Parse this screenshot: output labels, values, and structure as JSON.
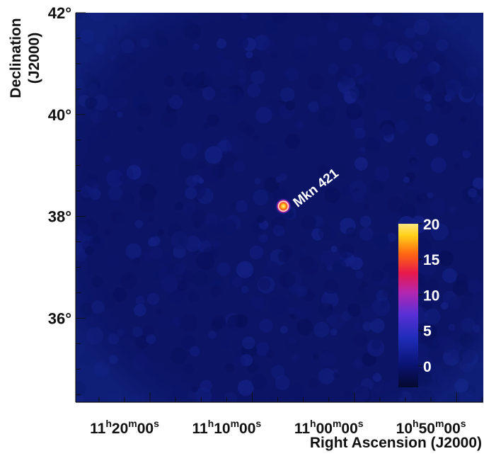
{
  "chart_data": {
    "type": "heatmap",
    "title": "",
    "xlabel": "Right Ascension (J2000)",
    "ylabel_line1": "Declination",
    "ylabel_line2": "(J2000)",
    "x_axis_reversed": true,
    "xlim_ra_hours": [
      11.413,
      10.748
    ],
    "ylim_dec_deg": [
      34.35,
      42.0
    ],
    "x_ticks": [
      {
        "ra_hours": 11.3333,
        "h": "11",
        "m": "20",
        "s": "00"
      },
      {
        "ra_hours": 11.1667,
        "h": "11",
        "m": "10",
        "s": "00"
      },
      {
        "ra_hours": 11.0,
        "h": "11",
        "m": "00",
        "s": "00"
      },
      {
        "ra_hours": 10.8333,
        "h": "10",
        "m": "50",
        "s": "00"
      }
    ],
    "x_unit_symbols": {
      "h": "h",
      "m": "m",
      "s": "s"
    },
    "y_ticks": [
      {
        "dec": 42,
        "label": "42°"
      },
      {
        "dec": 40,
        "label": "40°"
      },
      {
        "dec": 38,
        "label": "38°"
      },
      {
        "dec": 36,
        "label": "36°"
      }
    ],
    "source": {
      "name": "Mkn 421",
      "ra_hours": 11.0742,
      "dec": 38.2,
      "peak_value": 20
    },
    "colorbar": {
      "range": [
        -3,
        20
      ],
      "ticks": [
        {
          "value": 0,
          "label": "0"
        },
        {
          "value": 5,
          "label": "5"
        },
        {
          "value": 10,
          "label": "10"
        },
        {
          "value": 15,
          "label": "15"
        },
        {
          "value": 20,
          "label": "20"
        }
      ],
      "colors": [
        "#050a2e",
        "#0a1373",
        "#1e2cb8",
        "#5a30d6",
        "#b326b0",
        "#e8194a",
        "#ff6a10",
        "#ffd21a",
        "#ffe680"
      ]
    },
    "background_color": "#0c1466",
    "grid": false,
    "legend": "none"
  }
}
